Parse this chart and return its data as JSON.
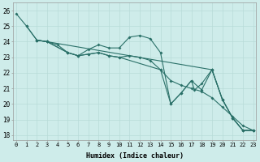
{
  "xlabel": "Humidex (Indice chaleur)",
  "bg_color": "#ceecea",
  "grid_color_major": "#b8dbd8",
  "grid_color_minor": "#d4eeec",
  "line_color": "#2a7068",
  "xlim": [
    -0.3,
    23.3
  ],
  "ylim": [
    17.7,
    26.5
  ],
  "yticks": [
    18,
    19,
    20,
    21,
    22,
    23,
    24,
    25,
    26
  ],
  "xticks": [
    0,
    1,
    2,
    3,
    4,
    5,
    6,
    7,
    8,
    9,
    10,
    11,
    12,
    13,
    14,
    15,
    16,
    17,
    18,
    19,
    20,
    21,
    22,
    23
  ],
  "lines": [
    {
      "x": [
        0,
        1,
        2,
        3,
        19,
        20,
        21,
        22,
        23
      ],
      "y": [
        25.8,
        25.0,
        24.1,
        24.0,
        22.2,
        20.3,
        19.1,
        18.3,
        18.3
      ]
    },
    {
      "x": [
        1,
        2,
        3,
        5,
        6,
        7,
        8,
        9,
        10,
        11,
        12,
        13,
        14,
        15,
        16,
        17,
        18,
        19,
        20,
        21,
        22,
        23
      ],
      "y": [
        25.0,
        24.1,
        24.0,
        23.3,
        23.1,
        23.5,
        23.8,
        23.6,
        23.6,
        24.3,
        24.4,
        24.2,
        23.3,
        20.0,
        20.7,
        21.5,
        20.9,
        22.2,
        20.3,
        19.1,
        18.3,
        18.3
      ]
    },
    {
      "x": [
        2,
        3,
        4,
        5,
        6,
        7,
        8,
        9,
        10,
        11,
        12,
        13,
        14,
        15,
        16,
        17,
        18,
        19,
        20,
        21,
        22,
        23
      ],
      "y": [
        24.1,
        24.0,
        23.8,
        23.3,
        23.1,
        23.2,
        23.3,
        23.1,
        23.0,
        23.1,
        23.0,
        22.8,
        22.2,
        21.5,
        21.2,
        21.0,
        20.8,
        20.4,
        19.8,
        19.2,
        18.6,
        18.3
      ]
    },
    {
      "x": [
        2,
        3,
        5,
        6,
        7,
        8,
        9,
        10,
        14,
        15,
        16,
        17,
        17.3,
        18,
        19,
        20,
        21,
        22,
        23
      ],
      "y": [
        24.1,
        24.0,
        23.3,
        23.1,
        23.2,
        23.3,
        23.1,
        23.0,
        22.2,
        20.0,
        20.7,
        21.5,
        20.9,
        21.3,
        22.2,
        20.3,
        19.1,
        18.3,
        18.3
      ]
    }
  ]
}
